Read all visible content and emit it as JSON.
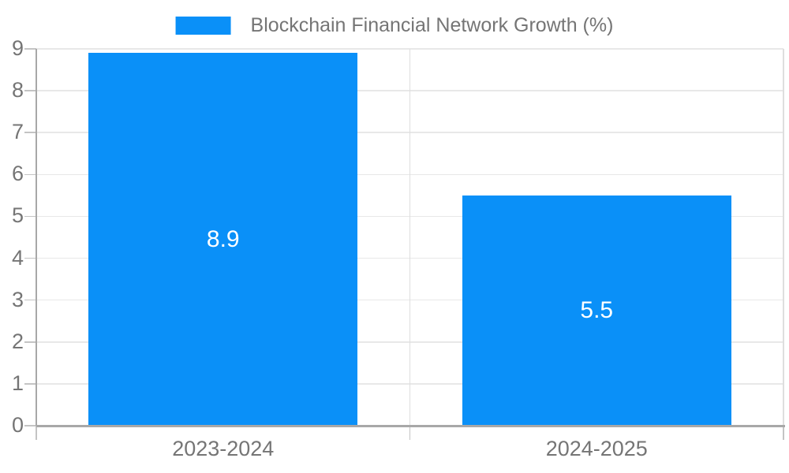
{
  "chart_data": {
    "type": "bar",
    "title": "Blockchain Financial Network Growth (%)",
    "legend": [
      "Blockchain Financial Network Growth (%)"
    ],
    "legend_position": "top-center",
    "categories": [
      "2023-2024",
      "2024-2025"
    ],
    "values": [
      8.9,
      5.5
    ],
    "value_labels": [
      "8.9",
      "5.5"
    ],
    "value_label_position": "bar-center",
    "xlabel": "",
    "ylabel": "",
    "ylim": [
      0,
      9
    ],
    "yticks": [
      0,
      1,
      2,
      3,
      4,
      5,
      6,
      7,
      8,
      9
    ],
    "grid": true
  },
  "colors": {
    "bar": "#0a90f8",
    "value_label": "#ffffff",
    "tick_label": "#757575",
    "legend_label": "#757575",
    "axis_line": "#a8a8a8",
    "grid_line_h": "#e8e8e8",
    "grid_line_v": "#dedede",
    "tick_mark": "#c4c4c4",
    "background": "#ffffff"
  }
}
